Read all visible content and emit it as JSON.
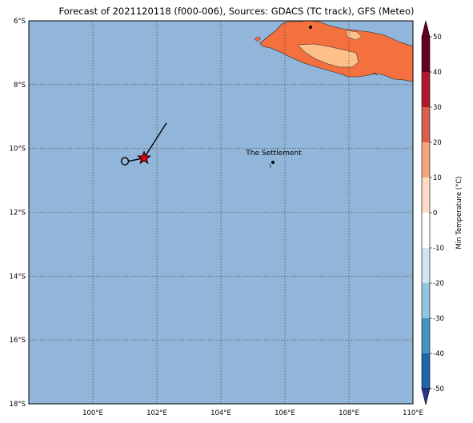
{
  "title": "Forecast of 2021120118 (f000-006), Sources: GDACS (TC track), GFS (Meteo)",
  "map": {
    "lat_ticks": [
      "6°S",
      "8°S",
      "10°S",
      "12°S",
      "14°S",
      "16°S",
      "18°S"
    ],
    "lon_ticks": [
      "100°E",
      "102°E",
      "104°E",
      "106°E",
      "108°E",
      "110°E"
    ],
    "lat_values": [
      -6,
      -8,
      -10,
      -12,
      -14,
      -16,
      -18
    ],
    "lon_values": [
      100,
      102,
      104,
      106,
      108,
      110
    ],
    "lat_range": [
      -18,
      -6
    ],
    "lon_range": [
      98,
      110
    ],
    "ocean_color": "#91b6d9",
    "gridlines": true
  },
  "place_label": "The Settlement",
  "track": {
    "current": {
      "lon": 101.6,
      "lat": -10.3
    },
    "past": {
      "lon": 101.0,
      "lat": -10.4
    },
    "heading_end": {
      "lon": 102.3,
      "lat": -9.2
    },
    "star_color": "#e8000b"
  },
  "colorbar": {
    "label": "Min Temperature (°C)",
    "ticks": [
      50,
      40,
      30,
      20,
      10,
      0,
      -10,
      -20,
      -30,
      -40,
      -50
    ],
    "colors": [
      "#67001f",
      "#b2182b",
      "#d6604d",
      "#f4a582",
      "#fddbc7",
      "#ffffff",
      "#d1e5f0",
      "#92c5de",
      "#4393c3",
      "#2166ac",
      "#283593"
    ]
  }
}
